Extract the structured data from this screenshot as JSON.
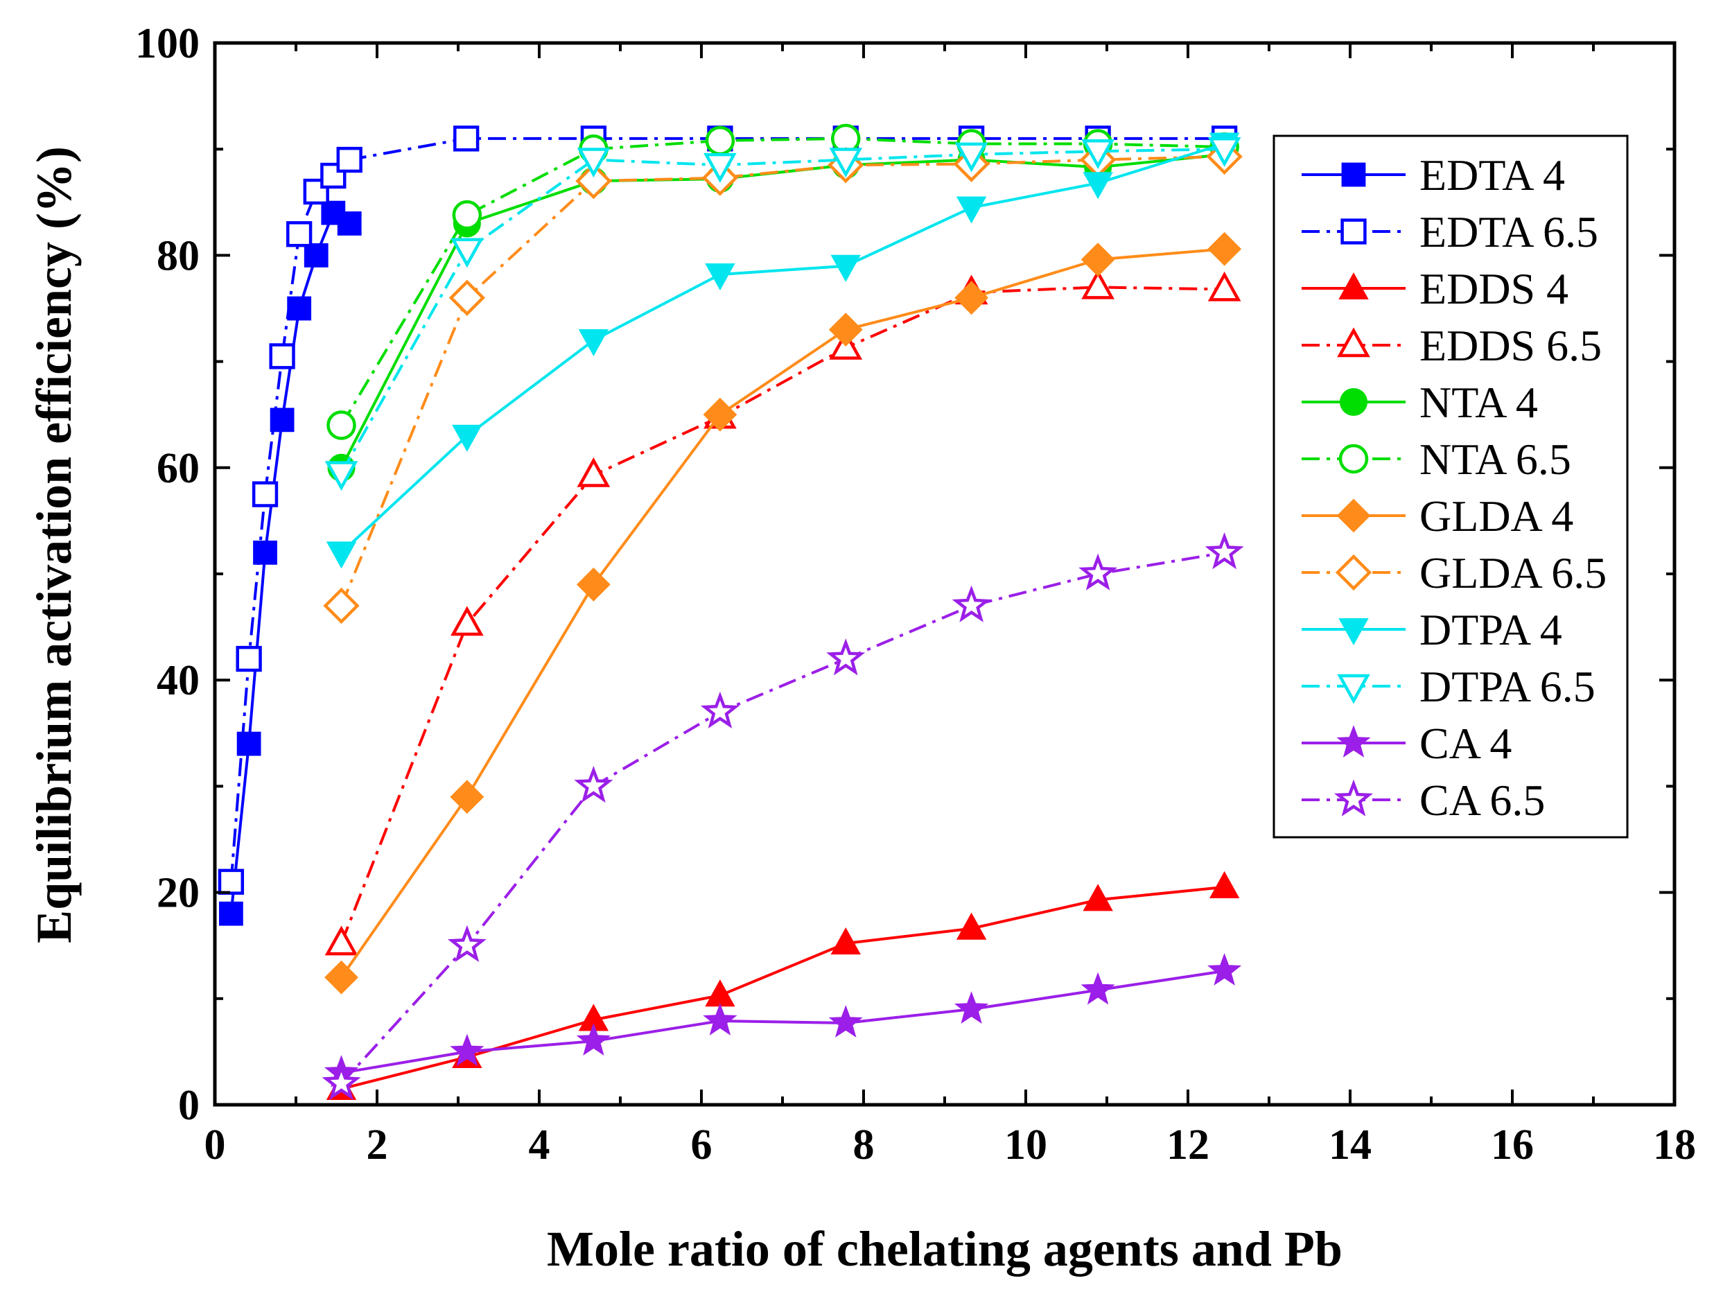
{
  "chart_data": {
    "type": "line",
    "title": "",
    "xlabel": "Mole ratio of chelating agents and Pb",
    "ylabel": "Equilibrium activation efficiency (%)",
    "xlim": [
      0,
      18
    ],
    "ylim": [
      0,
      100
    ],
    "xticks": [
      0,
      2,
      4,
      6,
      8,
      10,
      12,
      14,
      16,
      18
    ],
    "yticks": [
      0,
      20,
      40,
      60,
      80,
      100
    ],
    "xtick_labels": [
      "0",
      "2",
      "4",
      "6",
      "8",
      "10",
      "12",
      "14",
      "16",
      "18"
    ],
    "ytick_labels": [
      "0",
      "20",
      "40",
      "60",
      "80",
      "100"
    ],
    "grid": false,
    "legend_position": "right",
    "series": [
      {
        "name": "EDTA 4",
        "color": "#0000ff",
        "marker": "square",
        "filled": true,
        "dash": "solid",
        "x": [
          0.2,
          0.42,
          0.62,
          0.83,
          1.04,
          1.25,
          1.46,
          1.66
        ],
        "y": [
          18,
          34,
          52,
          64.5,
          75,
          80,
          84,
          83
        ]
      },
      {
        "name": "EDTA 6.5",
        "color": "#0000ff",
        "marker": "square",
        "filled": false,
        "dash": "dashdot",
        "x": [
          0.2,
          0.42,
          0.62,
          0.83,
          1.04,
          1.25,
          1.46,
          1.66,
          3.1,
          4.67,
          6.23,
          7.78,
          9.33,
          10.89,
          12.45
        ],
        "y": [
          21,
          42,
          57.5,
          70.5,
          82,
          86,
          87.5,
          89,
          91,
          91,
          91,
          91,
          91,
          91,
          91
        ]
      },
      {
        "name": "EDDS 4",
        "color": "#ff0000",
        "marker": "triangle-up",
        "filled": true,
        "dash": "solid",
        "x": [
          1.56,
          3.11,
          4.67,
          6.23,
          7.78,
          9.33,
          10.89,
          12.45
        ],
        "y": [
          1.5,
          4.5,
          8,
          10.3,
          15.2,
          16.6,
          19.3,
          20.5
        ]
      },
      {
        "name": "EDDS 6.5",
        "color": "#ff0000",
        "marker": "triangle-up",
        "filled": false,
        "dash": "dashdot",
        "x": [
          1.56,
          3.11,
          4.67,
          6.23,
          7.78,
          9.33,
          10.89,
          12.45
        ],
        "y": [
          15.2,
          45.3,
          59.3,
          64.8,
          71.3,
          76.5,
          77,
          76.8
        ]
      },
      {
        "name": "NTA 4",
        "color": "#00dd00",
        "marker": "circle",
        "filled": true,
        "dash": "solid",
        "x": [
          1.56,
          3.11,
          4.67,
          6.23,
          7.78,
          9.33,
          10.89,
          12.45
        ],
        "y": [
          60,
          83,
          87,
          87.2,
          88.5,
          89,
          88.3,
          89.5
        ]
      },
      {
        "name": "NTA 6.5",
        "color": "#00dd00",
        "marker": "circle",
        "filled": false,
        "dash": "dashdot",
        "x": [
          1.56,
          3.11,
          4.67,
          6.23,
          7.78,
          9.33,
          10.89,
          12.45
        ],
        "y": [
          64,
          83.8,
          90,
          90.8,
          91,
          90.5,
          90.5,
          90.2
        ]
      },
      {
        "name": "GLDA 4",
        "color": "#ff8c1a",
        "marker": "diamond",
        "filled": true,
        "dash": "solid",
        "x": [
          1.56,
          3.11,
          4.67,
          6.23,
          7.78,
          9.33,
          10.89,
          12.45
        ],
        "y": [
          12,
          29,
          49,
          65,
          73,
          76,
          79.6,
          80.6
        ]
      },
      {
        "name": "GLDA 6.5",
        "color": "#ff8c1a",
        "marker": "diamond",
        "filled": false,
        "dash": "dashdot",
        "x": [
          1.56,
          3.11,
          4.67,
          6.23,
          7.78,
          9.33,
          10.89,
          12.45
        ],
        "y": [
          47,
          76,
          87,
          87.3,
          88.5,
          88.6,
          89,
          89.3
        ]
      },
      {
        "name": "DTPA 4",
        "color": "#00e5ee",
        "marker": "triangle-down",
        "filled": true,
        "dash": "solid",
        "x": [
          1.56,
          3.11,
          4.67,
          6.23,
          7.78,
          9.33,
          10.89,
          12.45
        ],
        "y": [
          52,
          63,
          72,
          78.2,
          79,
          84.5,
          86.8,
          90.5
        ]
      },
      {
        "name": "DTPA 6.5",
        "color": "#00e5ee",
        "marker": "triangle-down",
        "filled": false,
        "dash": "dashdot",
        "x": [
          1.56,
          3.11,
          4.67,
          6.23,
          7.78,
          9.33,
          10.89,
          12.45
        ],
        "y": [
          59.5,
          80.5,
          89,
          88.5,
          89,
          89.5,
          89.8,
          90
        ]
      },
      {
        "name": "CA 4",
        "color": "#9b1fe8",
        "marker": "star",
        "filled": true,
        "dash": "solid",
        "x": [
          1.56,
          3.11,
          4.67,
          6.23,
          7.78,
          9.33,
          10.89,
          12.45
        ],
        "y": [
          3,
          5,
          6,
          7.9,
          7.7,
          9,
          10.8,
          12.6
        ]
      },
      {
        "name": "CA 6.5",
        "color": "#9b1fe8",
        "marker": "star",
        "filled": false,
        "dash": "dashdot",
        "x": [
          1.56,
          3.11,
          4.67,
          6.23,
          7.78,
          9.33,
          10.89,
          12.45
        ],
        "y": [
          2,
          15,
          30,
          37,
          42,
          47,
          50,
          52
        ]
      }
    ]
  }
}
